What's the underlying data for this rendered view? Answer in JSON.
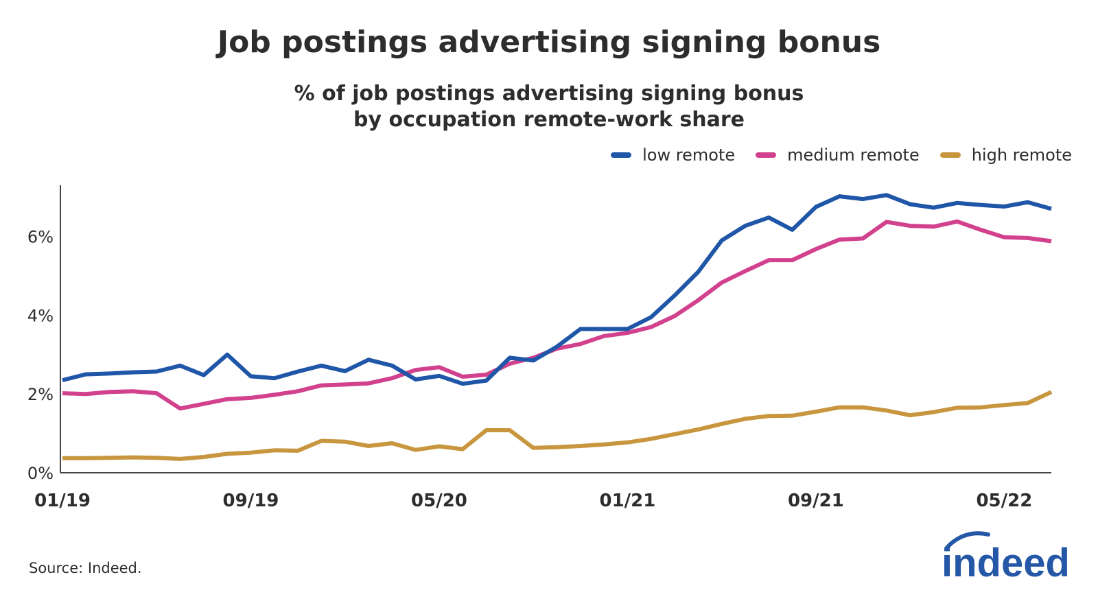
{
  "header": {
    "title": "Job postings advertising signing bonus",
    "subtitle_line1": "% of job postings advertising signing bonus",
    "subtitle_line2": "by occupation remote-work share"
  },
  "footer": {
    "source": "Source: Indeed.",
    "logo_text": "indeed"
  },
  "colors": {
    "low": "#1f56a8",
    "medium": "#d2418d",
    "high": "#c8963e",
    "logo": "#2557a7"
  },
  "chart_data": {
    "type": "line",
    "x": [
      "01/19",
      "02/19",
      "03/19",
      "04/19",
      "05/19",
      "06/19",
      "07/19",
      "08/19",
      "09/19",
      "10/19",
      "11/19",
      "12/19",
      "01/20",
      "02/20",
      "03/20",
      "04/20",
      "05/20",
      "06/20",
      "07/20",
      "08/20",
      "09/20",
      "10/20",
      "11/20",
      "12/20",
      "01/21",
      "02/21",
      "03/21",
      "04/21",
      "05/21",
      "06/21",
      "07/21",
      "08/21",
      "09/21",
      "10/21",
      "11/21",
      "12/21",
      "01/22",
      "02/22",
      "03/22",
      "04/22",
      "05/22",
      "06/22",
      "07/22"
    ],
    "x_tick_labels": [
      "01/19",
      "09/19",
      "05/20",
      "01/21",
      "09/21",
      "05/22"
    ],
    "y_ticks": [
      "0%",
      "2%",
      "4%",
      "6%"
    ],
    "ylim": [
      0,
      7.3
    ],
    "series": [
      {
        "name": "low remote",
        "color_key": "low",
        "values": [
          2.35,
          2.5,
          2.52,
          2.55,
          2.57,
          2.72,
          2.48,
          3.0,
          2.45,
          2.4,
          2.57,
          2.72,
          2.58,
          2.87,
          2.72,
          2.37,
          2.46,
          2.26,
          2.34,
          2.92,
          2.85,
          3.2,
          3.65,
          3.65,
          3.65,
          3.95,
          4.5,
          5.1,
          5.9,
          6.27,
          6.48,
          6.17,
          6.75,
          7.02,
          6.95,
          7.05,
          6.82,
          6.73,
          6.85,
          6.8,
          6.76,
          6.87,
          6.7
        ]
      },
      {
        "name": "medium remote",
        "color_key": "medium",
        "values": [
          2.02,
          2.0,
          2.05,
          2.07,
          2.02,
          1.63,
          1.75,
          1.87,
          1.9,
          1.98,
          2.07,
          2.22,
          2.24,
          2.27,
          2.4,
          2.61,
          2.68,
          2.44,
          2.49,
          2.77,
          2.92,
          3.15,
          3.27,
          3.47,
          3.55,
          3.7,
          3.98,
          4.38,
          4.83,
          5.12,
          5.4,
          5.4,
          5.68,
          5.92,
          5.95,
          6.37,
          6.27,
          6.25,
          6.38,
          6.17,
          5.98,
          5.96,
          5.88
        ]
      },
      {
        "name": "high remote",
        "color_key": "high",
        "values": [
          0.37,
          0.37,
          0.38,
          0.39,
          0.38,
          0.35,
          0.4,
          0.48,
          0.51,
          0.57,
          0.56,
          0.81,
          0.79,
          0.68,
          0.75,
          0.58,
          0.67,
          0.6,
          1.08,
          1.08,
          0.63,
          0.65,
          0.68,
          0.72,
          0.77,
          0.86,
          0.98,
          1.1,
          1.24,
          1.37,
          1.44,
          1.45,
          1.55,
          1.66,
          1.66,
          1.58,
          1.46,
          1.54,
          1.65,
          1.66,
          1.72,
          1.77,
          2.05
        ]
      }
    ],
    "xlabel": "",
    "ylabel": "",
    "grid": false,
    "legend_position": "top-right"
  }
}
